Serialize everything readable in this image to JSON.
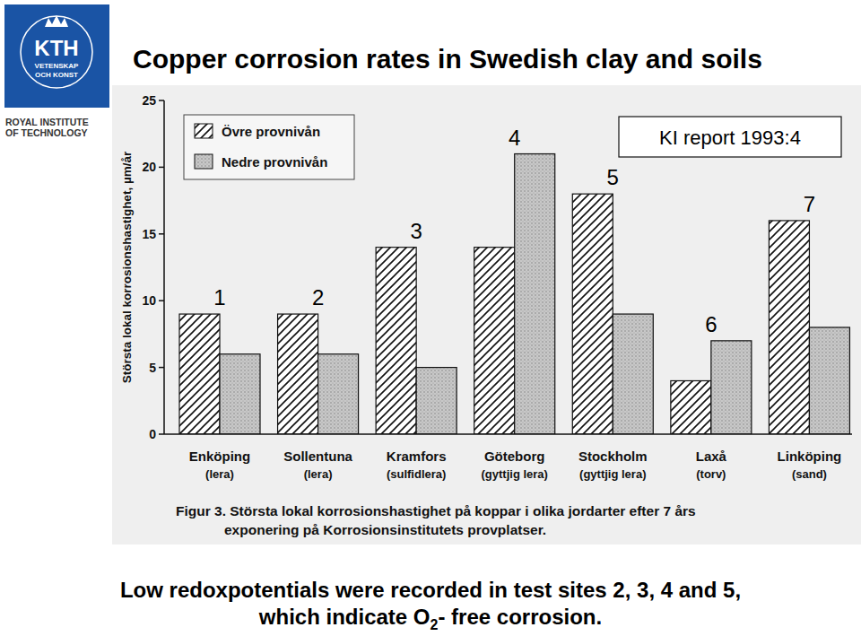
{
  "header": {
    "title": "Copper corrosion rates in Swedish clay and soils",
    "logo": [
      "KTH",
      "VETENSKAP",
      "OCH KONST"
    ],
    "institute": [
      "ROYAL INSTITUTE",
      "OF TECHNOLOGY"
    ]
  },
  "chart_data": {
    "type": "bar",
    "y_label": "Största lokal korrosionshastighet, µm/år",
    "categories": [
      "Enköping\n(lera)",
      "Sollentuna\n(lera)",
      "Kramfors\n(sulfidlera)",
      "Göteborg\n(gyttjig lera)",
      "Stockholm\n(gyttjig lera)",
      "Laxå\n(torv)",
      "Linköping\n(sand)"
    ],
    "series": [
      {
        "name": "Övre provnivån",
        "color": "#ffffff",
        "values": [
          9,
          9,
          14,
          14,
          18,
          4,
          16
        ]
      },
      {
        "name": "Nedre provnivån",
        "color": "#c8c8c8",
        "values": [
          6,
          6,
          5,
          21,
          9,
          7,
          8
        ]
      }
    ],
    "ylim": [
      0,
      25
    ],
    "yticks": [
      0,
      5,
      10,
      15,
      20,
      25
    ],
    "grid": false,
    "legend": "upper left",
    "site_labels": [
      1,
      2,
      3,
      4,
      5,
      6,
      7
    ],
    "annotations": [
      "KI report 1993:4"
    ],
    "caption": [
      "Figur 3. Största lokal korrosionshastighet på koppar i olika jordarter efter 7 års",
      "exponering på Korrosionsinstitutets provplatser."
    ]
  },
  "footer": [
    "Low redoxpotentials were recorded in test sites 2, 3, 4 and 5,",
    "which indicate O",
    "2",
    "- free corrosion."
  ]
}
